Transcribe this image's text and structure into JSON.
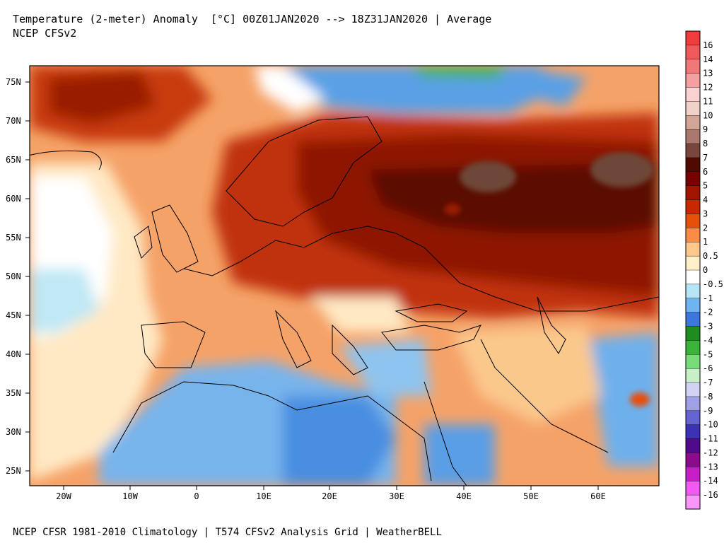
{
  "header": {
    "title_line1": "Temperature (2-meter) Anomaly  [°C] 00Z01JAN2020 --> 18Z31JAN2020 | Average",
    "title_line2": "NCEP CFSv2"
  },
  "footer": {
    "credit": "NCEP CFSR 1981-2010 Climatology | T574 CFSv2 Analysis Grid | WeatherBELL"
  },
  "axes": {
    "lat_labels": [
      "75N",
      "70N",
      "65N",
      "60N",
      "55N",
      "50N",
      "45N",
      "40N",
      "35N",
      "30N",
      "25N"
    ],
    "lon_labels": [
      "20W",
      "10W",
      "0",
      "10E",
      "20E",
      "30E",
      "40E",
      "50E",
      "60E"
    ]
  },
  "colorbar": {
    "unit": "°C",
    "levels": [
      {
        "label": "16",
        "color": "#f03c3c"
      },
      {
        "label": "14",
        "color": "#f05a5a"
      },
      {
        "label": "13",
        "color": "#f07878"
      },
      {
        "label": "12",
        "color": "#f5a0a0"
      },
      {
        "label": "11",
        "color": "#fad2d2"
      },
      {
        "label": "10",
        "color": "#f0d2c8"
      },
      {
        "label": "9",
        "color": "#d2a596"
      },
      {
        "label": "8",
        "color": "#aa786e"
      },
      {
        "label": "7",
        "color": "#78463c"
      },
      {
        "label": "6",
        "color": "#500a00"
      },
      {
        "label": "5",
        "color": "#780000"
      },
      {
        "label": "4",
        "color": "#a01400"
      },
      {
        "label": "3",
        "color": "#c82800"
      },
      {
        "label": "2",
        "color": "#e6500a"
      },
      {
        "label": "1",
        "color": "#fa8c46"
      },
      {
        "label": "0.5",
        "color": "#ffc88c"
      },
      {
        "label": "0",
        "color": "#fff0c8"
      },
      {
        "label": "-0.5",
        "color": "#ffffff"
      },
      {
        "label": "-1",
        "color": "#b4e6f5"
      },
      {
        "label": "-2",
        "color": "#6eb4f0"
      },
      {
        "label": "-3",
        "color": "#3c78dc"
      },
      {
        "label": "-4",
        "color": "#1e8c1e"
      },
      {
        "label": "-5",
        "color": "#3cb43c"
      },
      {
        "label": "-6",
        "color": "#78dc78"
      },
      {
        "label": "-7",
        "color": "#c8f0c8"
      },
      {
        "label": "-8",
        "color": "#d2d2f5"
      },
      {
        "label": "-9",
        "color": "#a0a0e6"
      },
      {
        "label": "-10",
        "color": "#6464d2"
      },
      {
        "label": "-11",
        "color": "#3c32b4"
      },
      {
        "label": "-12",
        "color": "#500a8c"
      },
      {
        "label": "-13",
        "color": "#8c0a8c"
      },
      {
        "label": "-14",
        "color": "#c81ec8"
      },
      {
        "label": "-16",
        "color": "#f05af0"
      },
      {
        "label": "",
        "color": "#fa96fa"
      }
    ]
  },
  "colors": {
    "ocean_warm": "#fa9650",
    "strong_warm": "#b41e00",
    "extreme_warm": "#6e4638",
    "cold": "#5aa0e6",
    "neutral": "#fff5dc"
  }
}
